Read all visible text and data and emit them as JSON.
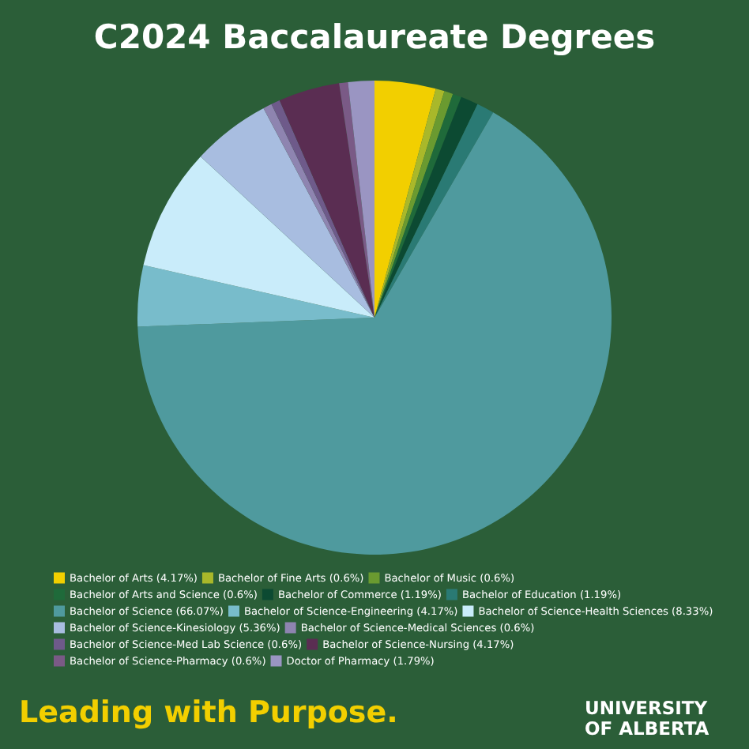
{
  "chart_data": {
    "type": "pie",
    "title": "C2024 Baccalaureate Degrees",
    "categories": [
      "Bachelor of Arts (4.17%)",
      "Bachelor of Fine Arts (0.6%)",
      "Bachelor of Music (0.6%)",
      "Bachelor of Arts and Science (0.6%)",
      "Bachelor of Commerce (1.19%)",
      "Bachelor of Education (1.19%)",
      "Bachelor of Science (66.07%)",
      "Bachelor of Science-Engineering (4.17%)",
      "Bachelor of Science-Health Sciences (8.33%)",
      "Bachelor of Science-Kinesiology (5.36%)",
      "Bachelor of Science-Medical Sciences (0.6%)",
      "Bachelor of Science-Med Lab Science (0.6%)",
      "Bachelor of Science-Nursing (4.17%)",
      "Bachelor of Science-Pharmacy (0.6%)",
      "Doctor of Pharmacy (1.79%)"
    ],
    "values": [
      4.17,
      0.6,
      0.6,
      0.6,
      1.19,
      1.19,
      66.07,
      4.17,
      8.33,
      5.36,
      0.6,
      0.6,
      4.17,
      0.6,
      1.79
    ],
    "colors": [
      "#f2cf00",
      "#a9b82a",
      "#6a9a30",
      "#1f6a3a",
      "#0c4a32",
      "#2a7a74",
      "#4f9a9e",
      "#78bccb",
      "#c9ecfa",
      "#a8bde0",
      "#8e84b0",
      "#6e5a8a",
      "#5a2d52",
      "#7a5a86",
      "#9a95c2"
    ],
    "legend": "bottom",
    "annotations": [
      "Leading with Purpose.",
      "UNIVERSITY OF ALBERTA"
    ]
  }
}
